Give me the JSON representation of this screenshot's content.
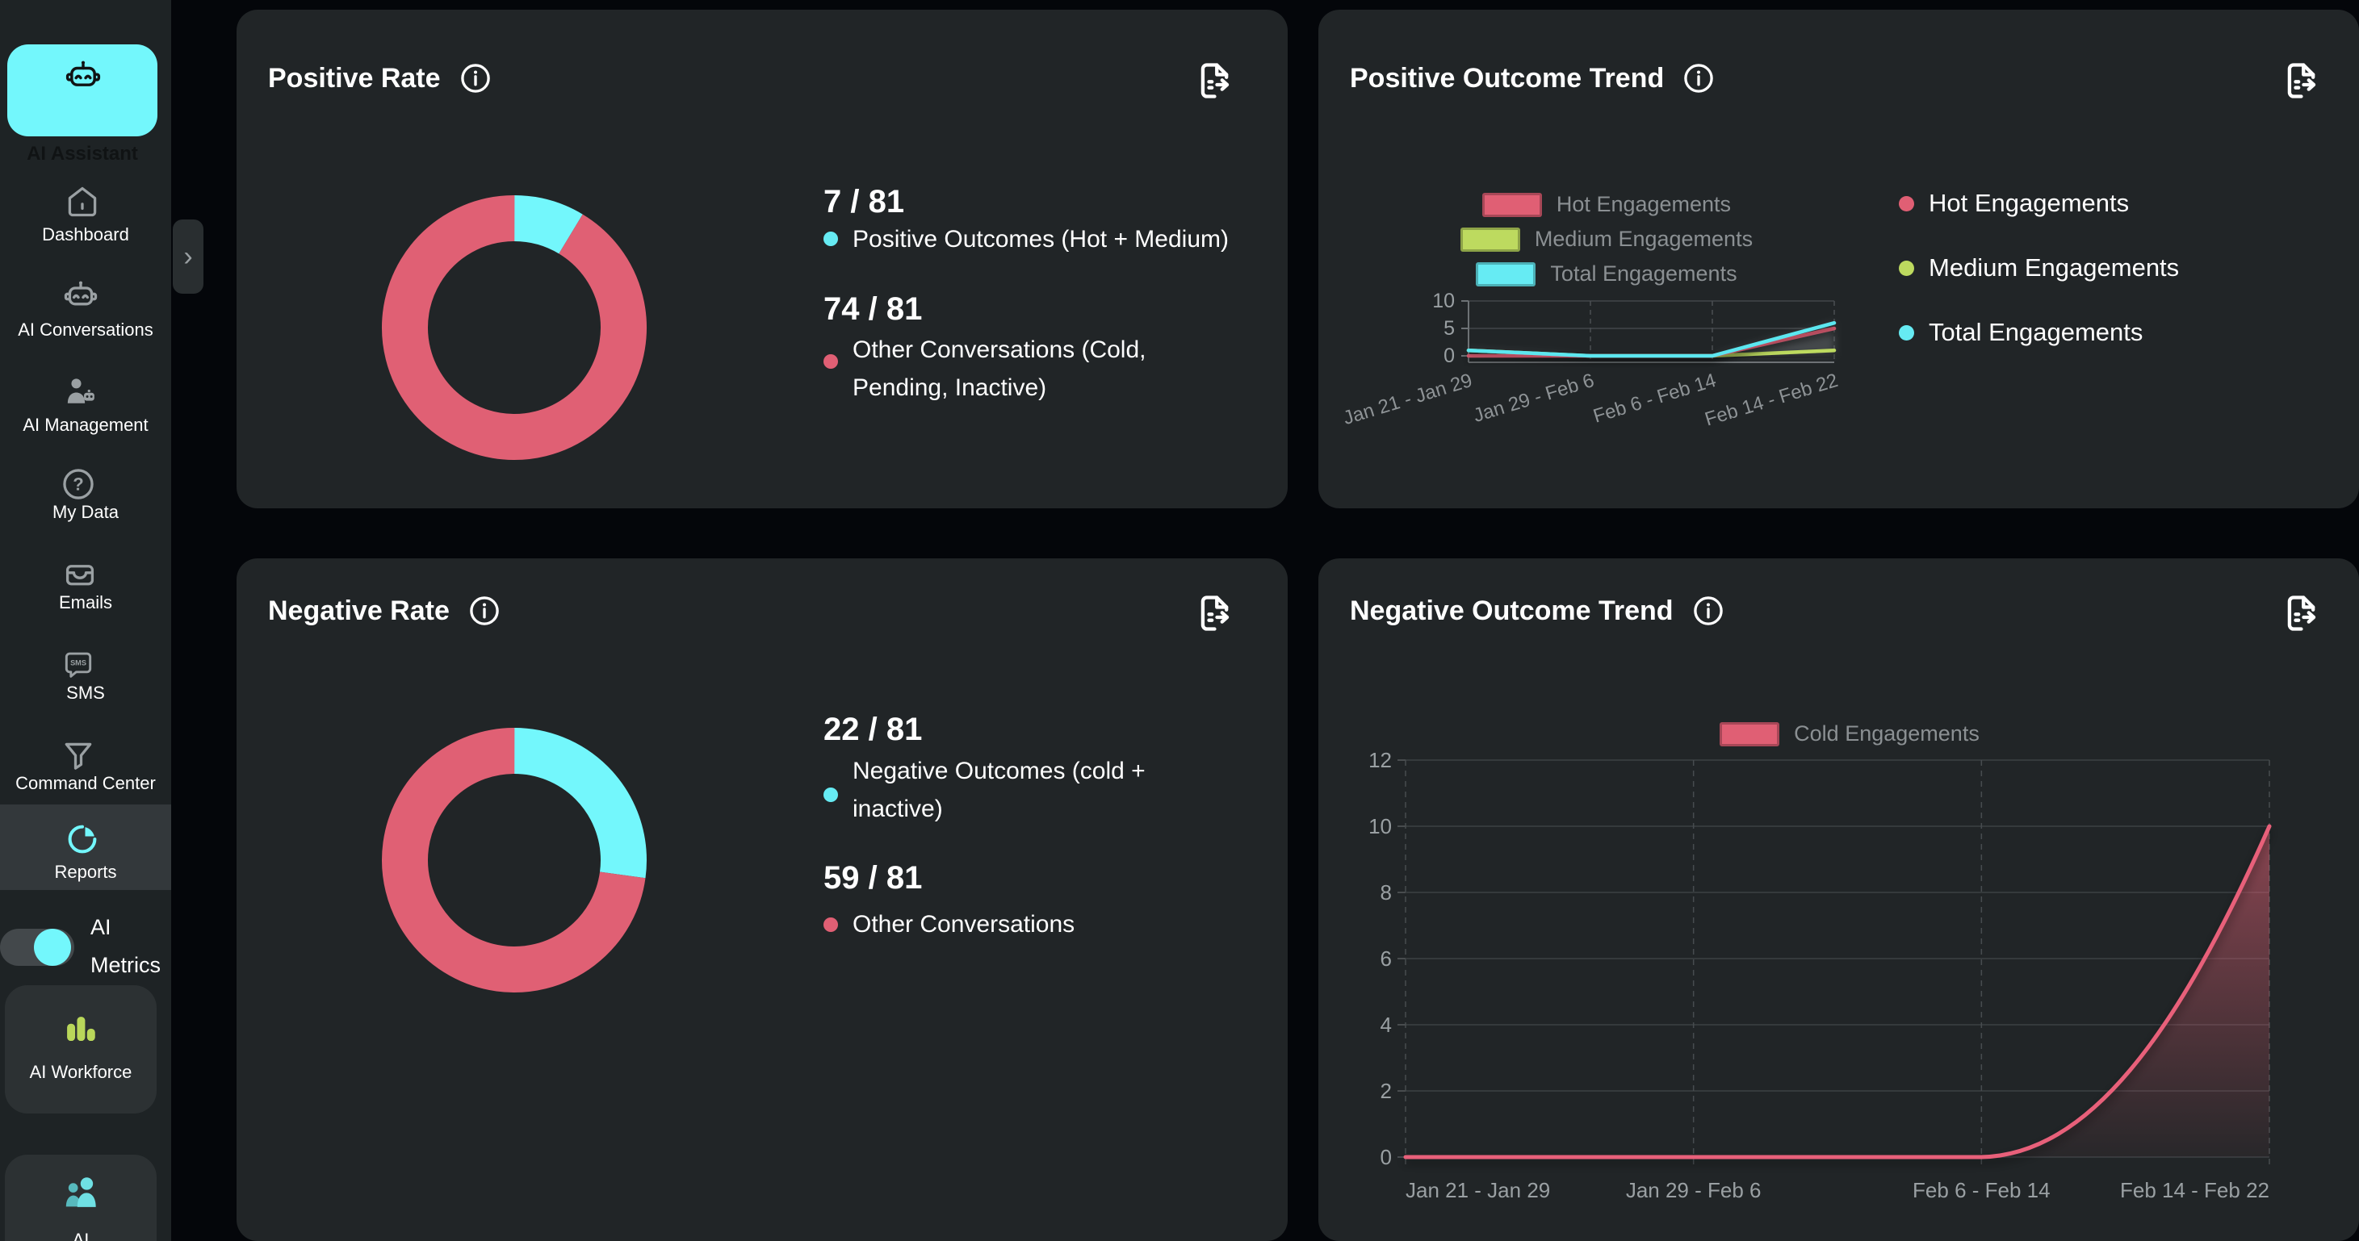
{
  "colors": {
    "accent_cyan": "#73f7fc",
    "legend_cyan": "#66ebf3",
    "hot_pink": "#e05f74",
    "medium_green": "#bdda5f",
    "card_bg": "#212527",
    "sidebar_bg": "#1e2325"
  },
  "sidebar": {
    "items": [
      {
        "label": "AI Assistant",
        "icon": "robot-icon",
        "state": "active"
      },
      {
        "label": "Dashboard",
        "icon": "home-icon"
      },
      {
        "label": "AI Conversations",
        "icon": "robot-icon"
      },
      {
        "label": "AI Management",
        "icon": "person-robot-icon"
      },
      {
        "label": "My Data",
        "icon": "help-circle-icon"
      },
      {
        "label": "Emails",
        "icon": "inbox-tray-icon"
      },
      {
        "label": "SMS",
        "icon": "sms-bubble-icon"
      },
      {
        "label": "Command Center",
        "icon": "funnel-icon"
      },
      {
        "label": "Reports",
        "icon": "pie-chart-icon",
        "state": "selected"
      }
    ],
    "metrics_toggle": {
      "label_line1": "AI",
      "label_line2": "Metrics",
      "state": "on"
    },
    "workforce": {
      "label": "AI Workforce",
      "icon": "bar-chart-icon"
    },
    "partial_bottom": {
      "label": "AI",
      "icon": "people-icon"
    },
    "expand_chevron": "›",
    "sms_glyph": "SMS",
    "question_glyph": "?"
  },
  "cards": {
    "positive_rate": {
      "title": "Positive Rate",
      "stat1": {
        "value": "7 / 81",
        "label": "Positive Outcomes (Hot + Medium)"
      },
      "stat2": {
        "value": "74 / 81",
        "label_line1": "Other Conversations (Cold,",
        "label_line2": "Pending, Inactive)"
      }
    },
    "positive_trend": {
      "title": "Positive Outcome Trend",
      "legend": [
        "Hot Engagements",
        "Medium Engagements",
        "Total Engagements"
      ]
    },
    "negative_rate": {
      "title": "Negative Rate",
      "stat1": {
        "value": "22 / 81",
        "label_line1": "Negative Outcomes (cold +",
        "label_line2": "inactive)"
      },
      "stat2": {
        "value": "59 / 81",
        "label": "Other Conversations"
      }
    },
    "negative_trend": {
      "title": "Negative Outcome Trend",
      "legend": [
        "Cold Engagements"
      ]
    }
  },
  "chart_data": [
    {
      "id": "positive_rate_donut",
      "type": "pie",
      "title": "Positive Rate",
      "total": 81,
      "slices": [
        {
          "label": "Positive Outcomes (Hot + Medium)",
          "value": 7,
          "color": "#73f7fc"
        },
        {
          "label": "Other Conversations (Cold, Pending, Inactive)",
          "value": 74,
          "color": "#e06074"
        }
      ]
    },
    {
      "id": "positive_outcome_trend",
      "type": "line",
      "title": "Positive Outcome Trend",
      "categories": [
        "Jan 21 - Jan 29",
        "Jan 29 - Feb 6",
        "Feb 6 - Feb 14",
        "Feb 14 - Feb 22"
      ],
      "series": [
        {
          "name": "Hot Engagements",
          "color": "#e05f74",
          "values": [
            0,
            0,
            0,
            5
          ]
        },
        {
          "name": "Medium Engagements",
          "color": "#bdda5f",
          "values": [
            1,
            0,
            0,
            1
          ]
        },
        {
          "name": "Total Engagements",
          "color": "#5be7f0",
          "values": [
            1,
            0,
            0,
            6
          ]
        }
      ],
      "ylim": [
        0,
        10
      ],
      "yticks": [
        0,
        5,
        10
      ],
      "grid": true,
      "legend_position": "top"
    },
    {
      "id": "negative_rate_donut",
      "type": "pie",
      "title": "Negative Rate",
      "total": 81,
      "slices": [
        {
          "label": "Negative Outcomes (cold + inactive)",
          "value": 22,
          "color": "#73f7fc"
        },
        {
          "label": "Other Conversations",
          "value": 59,
          "color": "#e06074"
        }
      ]
    },
    {
      "id": "negative_outcome_trend",
      "type": "area",
      "title": "Negative Outcome Trend",
      "categories": [
        "Jan 21 - Jan 29",
        "Jan 29 - Feb 6",
        "Feb 6 - Feb 14",
        "Feb 14 - Feb 22"
      ],
      "series": [
        {
          "name": "Cold Engagements",
          "color": "#e8607a",
          "values": [
            0,
            0,
            0,
            10
          ]
        }
      ],
      "ylim": [
        0,
        12
      ],
      "yticks": [
        0,
        2,
        4,
        6,
        8,
        10,
        12
      ],
      "grid": true,
      "legend_position": "top"
    }
  ]
}
